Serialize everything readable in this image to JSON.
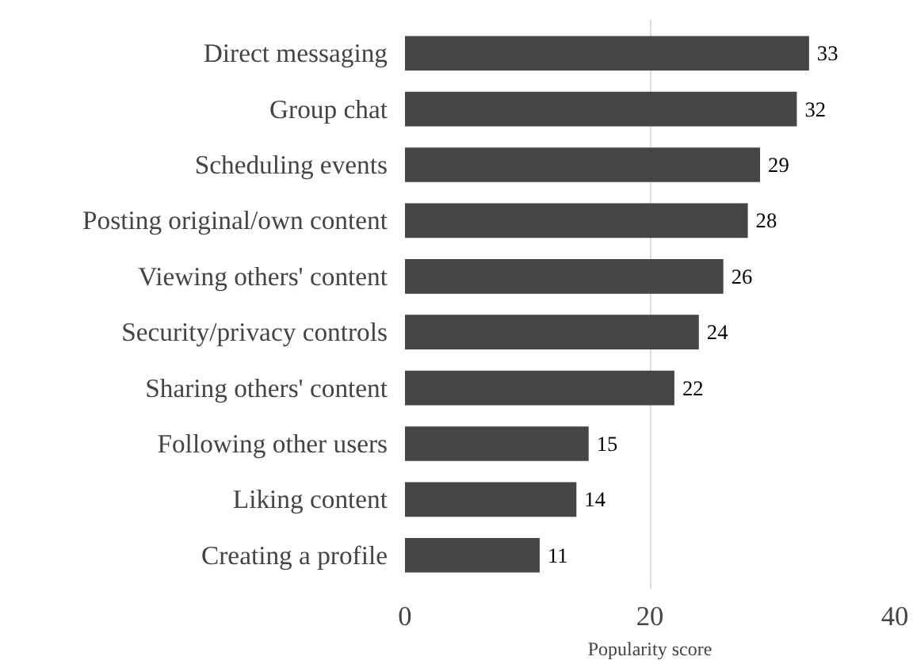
{
  "chart_data": {
    "type": "bar",
    "orientation": "horizontal",
    "xlabel": "Popularity score",
    "categories": [
      "Direct messaging",
      "Group chat",
      "Scheduling events",
      "Posting original/own content",
      "Viewing others' content",
      "Security/privacy controls",
      "Sharing others' content",
      "Following other users",
      "Liking content",
      "Creating a profile"
    ],
    "values": [
      33,
      32,
      29,
      28,
      26,
      24,
      22,
      15,
      14,
      11
    ],
    "color": "#454545",
    "xlim": [
      0,
      40
    ],
    "xticks": [
      0,
      20,
      40
    ],
    "grid": "x",
    "data_labels": true
  }
}
